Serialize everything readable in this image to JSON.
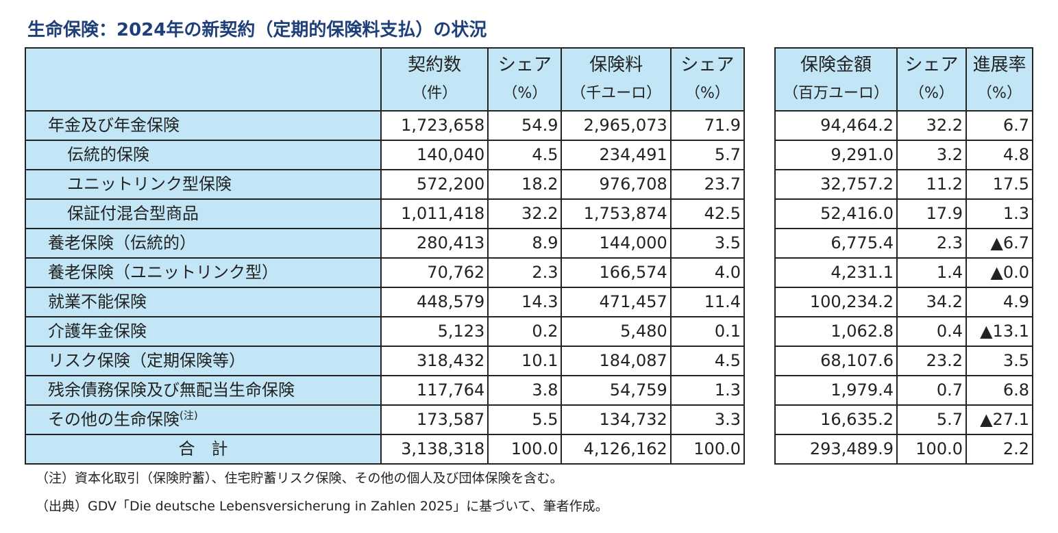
{
  "title": "生命保険：2024年の新契約（定期的保険料支払）の状況",
  "left_headers": [
    {
      "line1": "",
      "line2": ""
    },
    {
      "line1": "契約数",
      "line2": "（件）"
    },
    {
      "line1": "シェア",
      "line2": "（%）"
    },
    {
      "line1": "保険料",
      "line2": "（千ユーロ）"
    },
    {
      "line1": "シェア",
      "line2": "（%）"
    }
  ],
  "right_headers": [
    {
      "line1": "保険金額",
      "line2": "（百万ユーロ）"
    },
    {
      "line1": "シェア",
      "line2": "（%）"
    },
    {
      "line1": "進展率",
      "line2": "（%）"
    }
  ],
  "rows": [
    {
      "label": "年金及び年金保険",
      "contracts": "1,723,658",
      "share1": "54.9",
      "premium": "2,965,073",
      "share2": "71.9",
      "sum_insured": "94,464.2",
      "share3": "32.2",
      "growth": "6.7"
    },
    {
      "label": "伝統的保険",
      "contracts": "140,040",
      "share1": "4.5",
      "premium": "234,491",
      "share2": "5.7",
      "sum_insured": "9,291.0",
      "share3": "3.2",
      "growth": "4.8"
    },
    {
      "label": "ユニットリンク型保険",
      "contracts": "572,200",
      "share1": "18.2",
      "premium": "976,708",
      "share2": "23.7",
      "sum_insured": "32,757.2",
      "share3": "11.2",
      "growth": "17.5"
    },
    {
      "label": "保証付混合型商品",
      "contracts": "1,011,418",
      "share1": "32.2",
      "premium": "1,753,874",
      "share2": "42.5",
      "sum_insured": "52,416.0",
      "share3": "17.9",
      "growth": "1.3"
    },
    {
      "label": "養老保険（伝統的）",
      "contracts": "280,413",
      "share1": "8.9",
      "premium": "144,000",
      "share2": "3.5",
      "sum_insured": "6,775.4",
      "share3": "2.3",
      "growth": "▲6.7"
    },
    {
      "label": "養老保険（ユニットリンク型）",
      "contracts": "70,762",
      "share1": "2.3",
      "premium": "166,574",
      "share2": "4.0",
      "sum_insured": "4,231.1",
      "share3": "1.4",
      "growth": "▲0.0"
    },
    {
      "label": "就業不能保険",
      "contracts": "448,579",
      "share1": "14.3",
      "premium": "471,457",
      "share2": "11.4",
      "sum_insured": "100,234.2",
      "share3": "34.2",
      "growth": "4.9"
    },
    {
      "label": "介護年金保険",
      "contracts": "5,123",
      "share1": "0.2",
      "premium": "5,480",
      "share2": "0.1",
      "sum_insured": "1,062.8",
      "share3": "0.4",
      "growth": "▲13.1"
    },
    {
      "label": "リスク保険（定期保険等）",
      "contracts": "318,432",
      "share1": "10.1",
      "premium": "184,087",
      "share2": "4.5",
      "sum_insured": "68,107.6",
      "share3": "23.2",
      "growth": "3.5"
    },
    {
      "label": "残余債務保険及び無配当生命保険",
      "contracts": "117,764",
      "share1": "3.8",
      "premium": "54,759",
      "share2": "1.3",
      "sum_insured": "1,979.4",
      "share3": "0.7",
      "growth": "6.8"
    },
    {
      "label": "その他の生命保険",
      "label_sup": "(注)",
      "contracts": "173,587",
      "share1": "5.5",
      "premium": "134,732",
      "share2": "3.3",
      "sum_insured": "16,635.2",
      "share3": "5.7",
      "growth": "▲27.1"
    },
    {
      "label": "合　計",
      "contracts": "3,138,318",
      "share1": "100.0",
      "premium": "4,126,162",
      "share2": "100.0",
      "sum_insured": "293,489.9",
      "share3": "100.0",
      "growth": "2.2"
    }
  ],
  "notes": {
    "note1": "（注）資本化取引（保険貯蓄）、住宅貯蓄リスク保険、その他の個人及び団体保険を含む。",
    "note2": "（出典）GDV「Die deutsche Lebensversicherung in Zahlen 2025」に基づいて、筆者作成。"
  }
}
